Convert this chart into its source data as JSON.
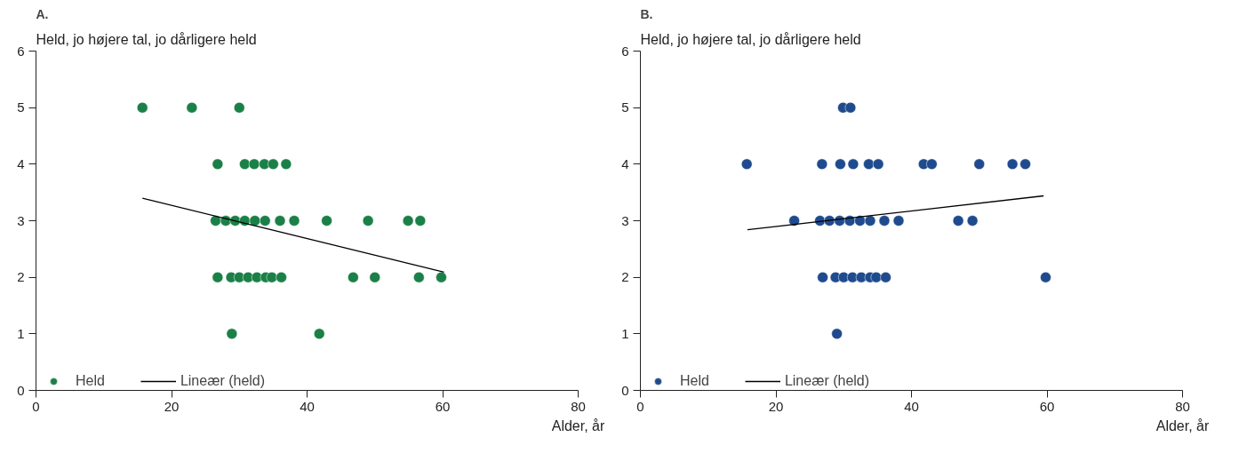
{
  "chart_data": [
    {
      "type": "scatter",
      "title": "A.",
      "ylabel": "Held, jo højere tal, jo dårligere held",
      "xlabel": "Alder, år",
      "xlim": [
        0,
        80
      ],
      "ylim": [
        0,
        6
      ],
      "xticks": [
        0,
        20,
        40,
        60,
        80
      ],
      "yticks": [
        0,
        1,
        2,
        3,
        4,
        5,
        6
      ],
      "grid": false,
      "legend": "bottom",
      "series": [
        {
          "name": "Held",
          "color": "#1b8048",
          "marker": "circle",
          "x": [
            15.7,
            23.0,
            30.0,
            26.8,
            30.8,
            32.2,
            33.7,
            35.0,
            36.9,
            26.5,
            28.0,
            29.4,
            30.8,
            32.3,
            33.8,
            36.0,
            38.1,
            42.9,
            49.0,
            54.9,
            56.7,
            26.8,
            28.8,
            30.0,
            31.3,
            32.6,
            33.9,
            34.8,
            36.2,
            46.8,
            50.0,
            56.5,
            59.8,
            28.9,
            41.8
          ],
          "values": [
            5,
            5,
            5,
            4,
            4,
            4,
            4,
            4,
            4,
            3,
            3,
            3,
            3,
            3,
            3,
            3,
            3,
            3,
            3,
            3,
            3,
            2,
            2,
            2,
            2,
            2,
            2,
            2,
            2,
            2,
            2,
            2,
            2,
            1,
            1
          ]
        },
        {
          "name": "Lineær (held)",
          "type": "line",
          "marker": "none",
          "color": "#000000",
          "x": [
            15.7,
            60.2
          ],
          "values": [
            3.4,
            2.09
          ]
        }
      ]
    },
    {
      "type": "scatter",
      "title": "B.",
      "ylabel": "Held, jo højere tal, jo dårligere held",
      "xlabel": "Alder, år",
      "xlim": [
        0,
        80
      ],
      "ylim": [
        0,
        6
      ],
      "xticks": [
        0,
        20,
        40,
        60,
        80
      ],
      "yticks": [
        0,
        1,
        2,
        3,
        4,
        5,
        6
      ],
      "grid": false,
      "legend": "bottom",
      "series": [
        {
          "name": "Held",
          "color": "#1f4b8e",
          "marker": "circle",
          "x": [
            29.9,
            31.0,
            15.7,
            26.8,
            29.5,
            31.4,
            33.7,
            35.1,
            41.8,
            43.0,
            50.0,
            54.9,
            56.8,
            22.7,
            26.5,
            27.9,
            29.4,
            30.9,
            32.4,
            33.9,
            36.0,
            38.1,
            46.9,
            49.0,
            26.9,
            28.8,
            30.0,
            31.3,
            32.6,
            33.9,
            34.8,
            36.2,
            59.8,
            29.0
          ],
          "values": [
            5,
            5,
            4,
            4,
            4,
            4,
            4,
            4,
            4,
            4,
            4,
            4,
            4,
            3,
            3,
            3,
            3,
            3,
            3,
            3,
            3,
            3,
            3,
            3,
            2,
            2,
            2,
            2,
            2,
            2,
            2,
            2,
            2,
            1
          ]
        },
        {
          "name": "Lineær (held)",
          "type": "line",
          "marker": "none",
          "color": "#000000",
          "x": [
            15.8,
            59.5
          ],
          "values": [
            2.84,
            3.44
          ]
        }
      ]
    }
  ]
}
